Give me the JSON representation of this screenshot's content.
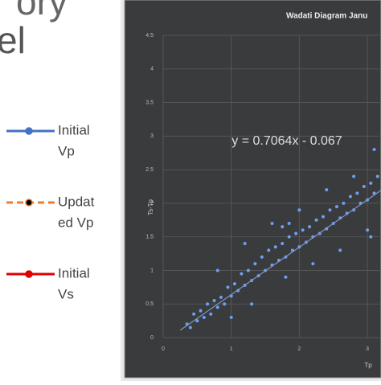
{
  "header": {
    "line1": "ory",
    "line2": "el"
  },
  "legend_panel": {
    "items": [
      {
        "label_lines": [
          "Initial",
          "Vp"
        ],
        "color": "#4472c4",
        "marker": "#4472c4",
        "dash": false
      },
      {
        "label_lines": [
          "Updat",
          "ed Vp"
        ],
        "color": "#ed7d31",
        "marker": "#000000",
        "dash": true
      },
      {
        "label_lines": [
          "Initial",
          "Vs"
        ],
        "color": "#e00000",
        "marker": "#e00000",
        "dash": false
      }
    ]
  },
  "chart_data": {
    "type": "scatter",
    "title": "Wadati Diagram Janu",
    "x_label": "Tp",
    "y_label": "Ts-Tp",
    "annotation": "y = 0.7064x - 0.067",
    "trendline": {
      "slope": 0.7064,
      "intercept": -0.067,
      "xrange": [
        0.25,
        3.2
      ],
      "color": "#7f95c8"
    },
    "xlim": [
      0,
      3.2
    ],
    "xticks": [
      0,
      1,
      2,
      3
    ],
    "ylim": [
      0,
      4.5
    ],
    "yticks": [
      0,
      0.5,
      1,
      1.5,
      2,
      2.5,
      3,
      3.5,
      4,
      4.5
    ],
    "grid": true,
    "color": "#6f9ff2",
    "x": [
      0.35,
      0.4,
      0.45,
      0.5,
      0.55,
      0.6,
      0.65,
      0.7,
      0.75,
      0.8,
      0.85,
      0.9,
      0.95,
      1.0,
      1.05,
      1.1,
      1.15,
      1.2,
      1.25,
      1.3,
      1.35,
      1.4,
      1.45,
      1.5,
      1.55,
      1.6,
      1.65,
      1.7,
      1.75,
      1.8,
      1.85,
      1.9,
      1.95,
      2.0,
      2.05,
      2.1,
      2.15,
      2.2,
      2.25,
      2.3,
      2.35,
      2.4,
      2.45,
      2.5,
      2.55,
      2.6,
      2.65,
      2.7,
      2.75,
      2.8,
      2.85,
      2.9,
      2.95,
      3.0,
      3.05,
      3.1,
      3.15,
      0.8,
      1.0,
      1.2,
      1.3,
      1.6,
      1.8,
      2.0,
      2.2,
      2.4,
      2.6,
      2.8,
      3.0,
      3.1,
      3.05,
      1.75,
      1.85
    ],
    "y": [
      0.2,
      0.15,
      0.35,
      0.25,
      0.4,
      0.3,
      0.5,
      0.35,
      0.55,
      0.45,
      0.6,
      0.5,
      0.75,
      0.62,
      0.8,
      0.7,
      0.95,
      0.78,
      1.0,
      0.85,
      1.1,
      0.92,
      1.2,
      1.0,
      1.3,
      1.08,
      1.35,
      1.15,
      1.4,
      1.2,
      1.5,
      1.3,
      1.55,
      1.35,
      1.6,
      1.42,
      1.65,
      1.5,
      1.75,
      1.55,
      1.8,
      1.62,
      1.9,
      1.7,
      1.95,
      1.78,
      2.0,
      1.85,
      2.1,
      1.9,
      2.15,
      2.0,
      2.25,
      2.05,
      2.3,
      2.15,
      2.4,
      1.0,
      0.3,
      1.4,
      0.5,
      1.7,
      0.9,
      1.9,
      1.1,
      2.2,
      1.3,
      2.4,
      1.6,
      2.8,
      1.5,
      1.65,
      1.7
    ]
  }
}
